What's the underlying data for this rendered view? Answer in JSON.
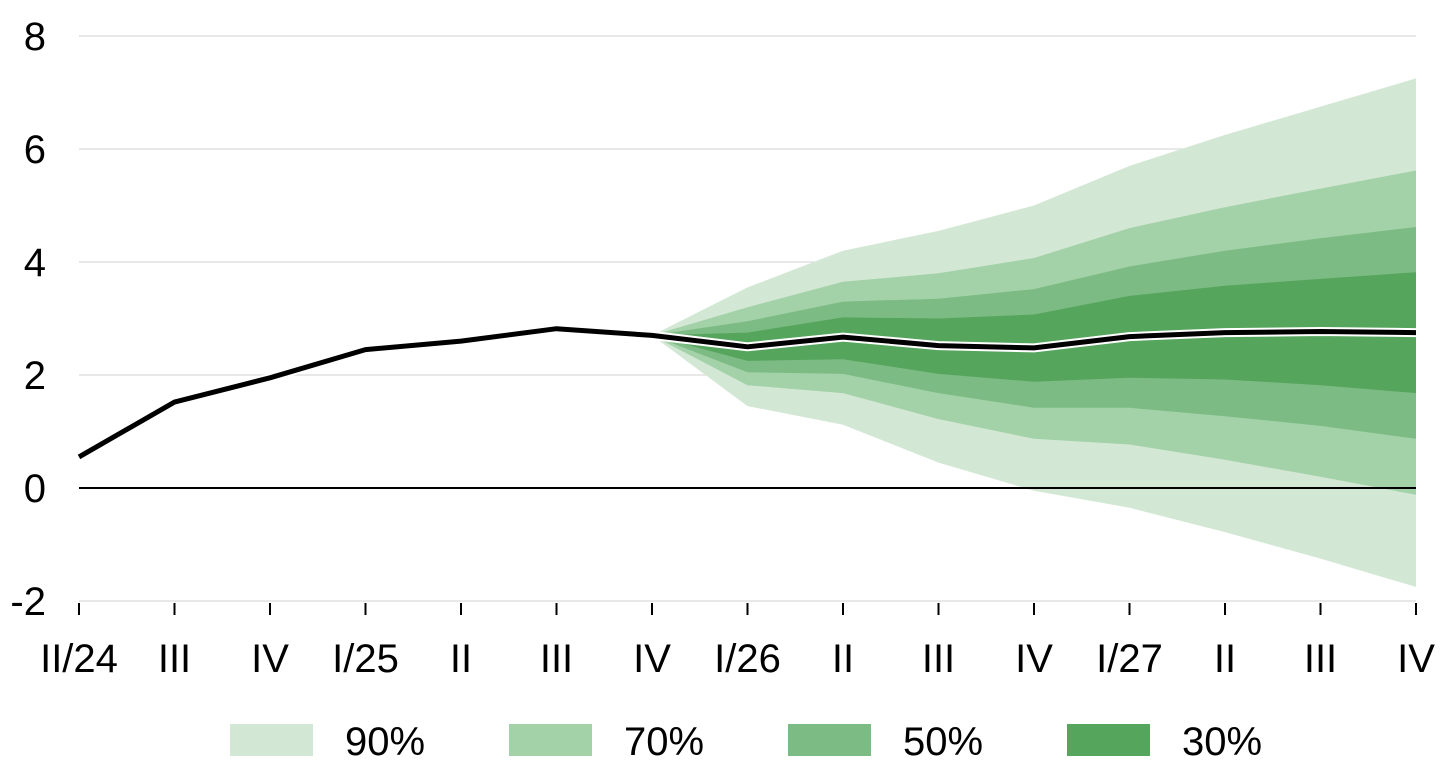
{
  "chart_data": {
    "type": "area",
    "title": "",
    "xlabel": "",
    "ylabel": "",
    "categories": [
      "II/24",
      "III",
      "IV",
      "I/25",
      "II",
      "III",
      "IV",
      "I/26",
      "II",
      "III",
      "IV",
      "I/27",
      "II",
      "III",
      "IV"
    ],
    "y_ticks": [
      -2,
      0,
      2,
      4,
      6,
      8
    ],
    "ylim": [
      -2,
      8
    ],
    "grid": true,
    "legend_position": "bottom",
    "series": [
      {
        "name": "",
        "kind": "line",
        "color": "#000000",
        "values": [
          0.55,
          1.52,
          1.95,
          2.45,
          2.6,
          2.82,
          2.7,
          2.5,
          2.67,
          2.52,
          2.48,
          2.68,
          2.75,
          2.77,
          2.75
        ]
      }
    ],
    "fan_start_index": 6,
    "bands": [
      {
        "name": "90%",
        "color": "#d2e8d4",
        "upper": [
          2.7,
          3.55,
          4.2,
          4.55,
          5.0,
          5.7,
          6.25,
          6.75,
          7.25
        ],
        "lower": [
          2.7,
          1.45,
          1.12,
          0.45,
          -0.05,
          -0.35,
          -0.78,
          -1.25,
          -1.75
        ]
      },
      {
        "name": "70%",
        "color": "#a3d1a8",
        "upper": [
          2.7,
          3.2,
          3.65,
          3.8,
          4.07,
          4.6,
          4.97,
          5.3,
          5.62
        ],
        "lower": [
          2.7,
          1.82,
          1.68,
          1.22,
          0.87,
          0.77,
          0.5,
          0.2,
          -0.12
        ]
      },
      {
        "name": "50%",
        "color": "#7dbb84",
        "upper": [
          2.7,
          2.95,
          3.3,
          3.35,
          3.52,
          3.92,
          4.2,
          4.42,
          4.62
        ],
        "lower": [
          2.7,
          2.05,
          2.02,
          1.68,
          1.42,
          1.42,
          1.27,
          1.1,
          0.87
        ]
      },
      {
        "name": "30%",
        "color": "#56a55d",
        "upper": [
          2.7,
          2.75,
          3.02,
          3.0,
          3.07,
          3.4,
          3.58,
          3.7,
          3.82
        ],
        "lower": [
          2.7,
          2.25,
          2.28,
          2.02,
          1.88,
          1.95,
          1.92,
          1.82,
          1.68
        ]
      }
    ]
  }
}
